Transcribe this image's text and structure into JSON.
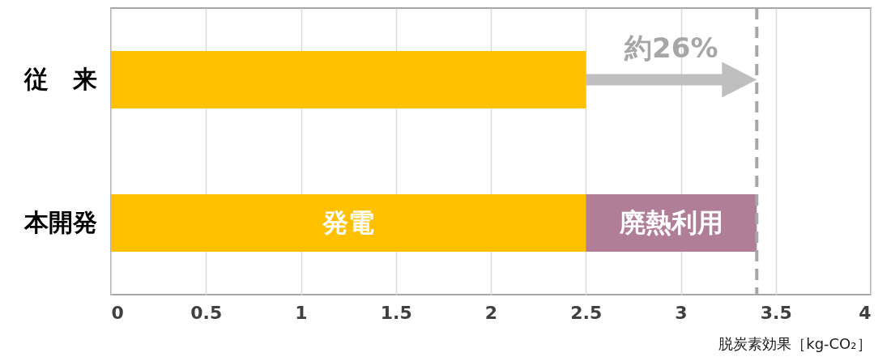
{
  "chart_data": {
    "type": "bar",
    "orientation": "horizontal",
    "stacked": true,
    "categories": [
      "従　来",
      "本開発"
    ],
    "series": [
      {
        "name": "発電",
        "color": "#ffc000",
        "values": [
          2.5,
          2.5
        ]
      },
      {
        "name": "廃熱利用",
        "color": "#b07f97",
        "values": [
          null,
          0.9
        ]
      }
    ],
    "xlabel": "脱炭素効果［kg-CO₂］",
    "xlim": [
      0,
      4
    ],
    "xticks": [
      0,
      0.5,
      1,
      1.5,
      2,
      2.5,
      3,
      3.5,
      4
    ],
    "grid": "x",
    "legend": false,
    "ref_lines": [
      {
        "axis": "x",
        "value": 3.4,
        "color": "#a6a6a6",
        "line_style": "dashed"
      }
    ],
    "annotations": [
      {
        "text": "約26%",
        "x": 3.4,
        "y": "従　来"
      }
    ]
  }
}
